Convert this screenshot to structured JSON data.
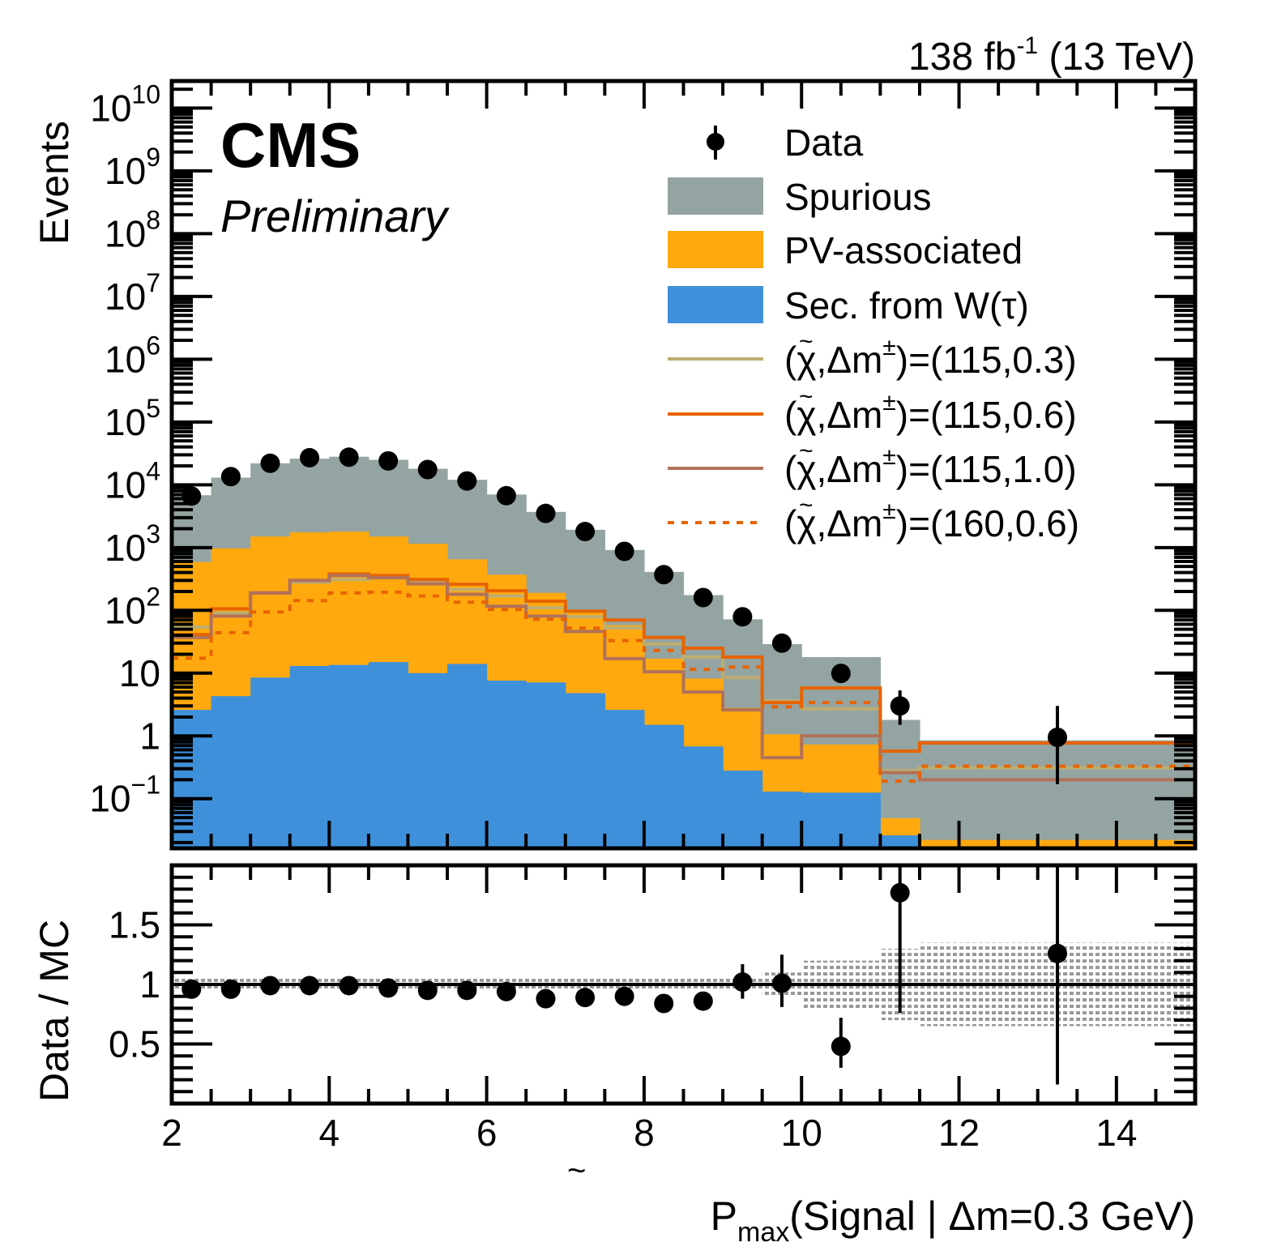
{
  "chart_data": [
    {
      "type": "bar",
      "panel": "main",
      "subtype": "stacked-histogram-log",
      "header": {
        "experiment": "CMS",
        "status": "Preliminary",
        "lumi_prefix": "138 fb",
        "lumi_sup": "-1",
        "lumi_suffix": " (13 TeV)"
      },
      "ylabel": "Events",
      "yscale": "log",
      "ylim": [
        0.0162,
        27000000000
      ],
      "yticks": [
        {
          "value": 10000000000.0,
          "base": "10",
          "exp": "10"
        },
        {
          "value": 1000000000.0,
          "base": "10",
          "exp": "9"
        },
        {
          "value": 100000000.0,
          "base": "10",
          "exp": "8"
        },
        {
          "value": 10000000.0,
          "base": "10",
          "exp": "7"
        },
        {
          "value": 1000000.0,
          "base": "10",
          "exp": "6"
        },
        {
          "value": 100000.0,
          "base": "10",
          "exp": "5"
        },
        {
          "value": 10000.0,
          "base": "10",
          "exp": "4"
        },
        {
          "value": 1000.0,
          "base": "10",
          "exp": "3"
        },
        {
          "value": 100.0,
          "base": "10",
          "exp": "2"
        },
        {
          "value": 10,
          "base": "10",
          "exp": ""
        },
        {
          "value": 1,
          "base": "1",
          "exp": ""
        },
        {
          "value": 0.1,
          "base": "10",
          "exp": "−1"
        }
      ],
      "xlim": [
        2,
        15
      ],
      "bin_edges": [
        2,
        2.5,
        3,
        3.5,
        4,
        4.5,
        5,
        5.5,
        6,
        6.5,
        7,
        7.5,
        8,
        8.5,
        9,
        9.5,
        10,
        11,
        11.5,
        15
      ],
      "stack_totals_note": "values are cumulative tops of each stacked layer",
      "stack": [
        {
          "name": "Spurious",
          "color": "#94a4a2",
          "top": [
            6800,
            13000,
            22000,
            26000,
            28000,
            25000,
            18000,
            12000,
            7000,
            3700,
            1920,
            915,
            410,
            175,
            72,
            29,
            18,
            1.8,
            0.85
          ]
        },
        {
          "name": "PV-associated",
          "color": "#ffa90e",
          "top": [
            590,
            970,
            1500,
            1750,
            1800,
            1500,
            1150,
            650,
            370,
            190,
            94,
            58,
            17,
            8.2,
            2.8,
            1.06,
            0.73,
            0.049,
            0.022
          ]
        },
        {
          "name": "Sec. from W(τ)",
          "color": "#3f90da",
          "top": [
            2.6,
            4.3,
            8.5,
            13,
            13.5,
            15,
            10,
            14,
            7.6,
            7.1,
            4.8,
            2.6,
            1.5,
            0.68,
            0.28,
            0.13,
            0.125,
            0.026,
            0
          ]
        }
      ],
      "signals": [
        {
          "name": "(χ̃,Δm±)=(115,0.3)",
          "color": "#bdad71",
          "style": "solid",
          "values": [
            54,
            91,
            190,
            280,
            310,
            350,
            280,
            215,
            170,
            110,
            79,
            52,
            29,
            18,
            8.5,
            3.6,
            2.7,
            0.28,
            0.31
          ]
        },
        {
          "name": "(χ̃,Δm±)=(115,0.6)",
          "color": "#e76300",
          "style": "solid",
          "values": [
            41,
            106,
            190,
            300,
            380,
            360,
            310,
            260,
            205,
            140,
            97,
            70,
            37,
            25,
            18,
            3.4,
            5.8,
            0.57,
            0.77
          ]
        },
        {
          "name": "(χ̃,Δm±)=(115,1.0)",
          "color": "#b1725a",
          "style": "solid",
          "values": [
            37,
            81,
            190,
            300,
            360,
            330,
            265,
            180,
            116,
            81,
            46,
            17,
            10.5,
            5.0,
            2.6,
            0.45,
            1.0,
            0.26,
            0.2
          ]
        },
        {
          "name": "(χ̃,Δm±)=(160,0.6)",
          "color": "#e76300",
          "style": "dotted",
          "values": [
            17.3,
            44,
            94,
            143,
            190,
            195,
            170,
            135,
            103,
            72,
            52,
            33,
            23,
            11.5,
            12.5,
            2.9,
            3.4,
            0.19,
            0.33
          ]
        }
      ],
      "data_points": {
        "name": "Data",
        "x": [
          2.25,
          2.75,
          3.25,
          3.75,
          4.25,
          4.75,
          5.25,
          5.75,
          6.25,
          6.75,
          7.25,
          7.75,
          8.25,
          8.75,
          9.25,
          9.75,
          10.5,
          11.25,
          13.25
        ],
        "y": [
          6600,
          13500,
          22000,
          27000,
          27500,
          24000,
          17500,
          11500,
          6700,
          3500,
          1800,
          870,
          370,
          160,
          79,
          30,
          9.9,
          3.0,
          0.95
        ],
        "err_low": [
          null,
          null,
          null,
          null,
          null,
          null,
          null,
          null,
          null,
          null,
          null,
          null,
          null,
          null,
          null,
          null,
          null,
          1.5,
          0.17
        ],
        "err_high": [
          null,
          null,
          null,
          null,
          null,
          null,
          null,
          null,
          null,
          null,
          null,
          null,
          null,
          null,
          null,
          null,
          null,
          5.3,
          3.0
        ]
      },
      "legend": {
        "placement": "top-right",
        "entries": [
          {
            "label": "Data",
            "kind": "marker"
          },
          {
            "label": "Spurious",
            "kind": "fill",
            "color": "#94a4a2"
          },
          {
            "label": "PV-associated",
            "kind": "fill",
            "color": "#ffa90e"
          },
          {
            "label": "Sec. from W(τ)",
            "kind": "fill",
            "color": "#3f90da"
          },
          {
            "label_pre": "(χ",
            "label_post": ",Δm",
            "sup": "±",
            "label_tail": ")=(115,0.3)",
            "kind": "line",
            "color": "#bdad71",
            "style": "solid"
          },
          {
            "label_pre": "(χ",
            "label_post": ",Δm",
            "sup": "±",
            "label_tail": ")=(115,0.6)",
            "kind": "line",
            "color": "#e76300",
            "style": "solid"
          },
          {
            "label_pre": "(χ",
            "label_post": ",Δm",
            "sup": "±",
            "label_tail": ")=(115,1.0)",
            "kind": "line",
            "color": "#b1725a",
            "style": "solid"
          },
          {
            "label_pre": "(χ",
            "label_post": ",Δm",
            "sup": "±",
            "label_tail": ")=(160,0.6)",
            "kind": "line",
            "color": "#e76300",
            "style": "dotted"
          }
        ]
      }
    },
    {
      "type": "scatter",
      "panel": "ratio",
      "ylabel": "Data / MC",
      "ylim": [
        0,
        2
      ],
      "yticks": [
        {
          "value": 0.5,
          "label": "0.5"
        },
        {
          "value": 1,
          "label": "1"
        },
        {
          "value": 1.5,
          "label": "1.5"
        }
      ],
      "xlim": [
        2,
        15
      ],
      "xticks": [
        {
          "value": 2,
          "label": "2"
        },
        {
          "value": 4,
          "label": "4"
        },
        {
          "value": 6,
          "label": "6"
        },
        {
          "value": 8,
          "label": "8"
        },
        {
          "value": 10,
          "label": "10"
        },
        {
          "value": 12,
          "label": "12"
        },
        {
          "value": 14,
          "label": "14"
        }
      ],
      "xlabel": {
        "sym": "P",
        "tilde": "~",
        "sub": "max",
        "rest": "(Signal | Δm=0.3 GeV)"
      },
      "reference_line": 1,
      "uncertainty_band": {
        "color": "#888888",
        "bin_edges": [
          2,
          9.5,
          10,
          11,
          11.5,
          15
        ],
        "half_width": [
          0.05,
          0.1,
          0.2,
          0.3,
          0.35
        ]
      },
      "points": {
        "x": [
          2.25,
          2.75,
          3.25,
          3.75,
          4.25,
          4.75,
          5.25,
          5.75,
          6.25,
          6.75,
          7.25,
          7.75,
          8.25,
          8.75,
          9.25,
          9.75,
          10.5,
          11.25,
          13.25
        ],
        "y": [
          0.96,
          0.96,
          0.99,
          0.99,
          0.99,
          0.97,
          0.95,
          0.95,
          0.94,
          0.88,
          0.89,
          0.9,
          0.84,
          0.86,
          1.02,
          1.01,
          0.48,
          1.77,
          1.26
        ],
        "err_low": [
          null,
          null,
          null,
          null,
          null,
          null,
          null,
          null,
          null,
          null,
          null,
          null,
          null,
          null,
          0.88,
          0.81,
          0.3,
          0.76,
          0.16
        ],
        "err_high": [
          null,
          null,
          null,
          null,
          null,
          null,
          null,
          null,
          null,
          null,
          null,
          null,
          null,
          null,
          1.17,
          1.25,
          0.72,
          2.0,
          2.0
        ]
      }
    }
  ]
}
